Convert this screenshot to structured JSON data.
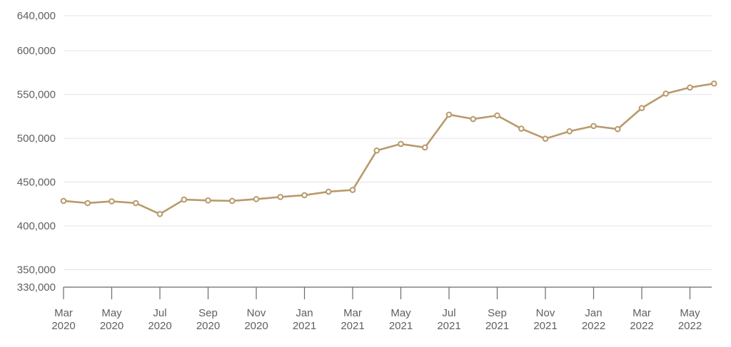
{
  "chart_data": {
    "type": "line",
    "title": "",
    "xlabel": "",
    "ylabel": "",
    "ylim": [
      330000,
      640000
    ],
    "y_ticks": [
      330000,
      350000,
      400000,
      450000,
      500000,
      550000,
      600000,
      640000
    ],
    "y_tick_labels": [
      "330,000",
      "350,000",
      "400,000",
      "450,000",
      "500,000",
      "550,000",
      "600,000",
      "640,000"
    ],
    "x_ticks": [
      {
        "month": "2020-03",
        "line1": "Mar",
        "line2": "2020"
      },
      {
        "month": "2020-05",
        "line1": "May",
        "line2": "2020"
      },
      {
        "month": "2020-07",
        "line1": "Jul",
        "line2": "2020"
      },
      {
        "month": "2020-09",
        "line1": "Sep",
        "line2": "2020"
      },
      {
        "month": "2020-11",
        "line1": "Nov",
        "line2": "2020"
      },
      {
        "month": "2021-01",
        "line1": "Jan",
        "line2": "2021"
      },
      {
        "month": "2021-03",
        "line1": "Mar",
        "line2": "2021"
      },
      {
        "month": "2021-05",
        "line1": "May",
        "line2": "2021"
      },
      {
        "month": "2021-07",
        "line1": "Jul",
        "line2": "2021"
      },
      {
        "month": "2021-09",
        "line1": "Sep",
        "line2": "2021"
      },
      {
        "month": "2021-11",
        "line1": "Nov",
        "line2": "2021"
      },
      {
        "month": "2022-01",
        "line1": "Jan",
        "line2": "2022"
      },
      {
        "month": "2022-03",
        "line1": "Mar",
        "line2": "2022"
      },
      {
        "month": "2022-05",
        "line1": "May",
        "line2": "2022"
      }
    ],
    "x": [
      "2020-03",
      "2020-04",
      "2020-05",
      "2020-06",
      "2020-07",
      "2020-08",
      "2020-09",
      "2020-10",
      "2020-11",
      "2020-12",
      "2021-01",
      "2021-02",
      "2021-03",
      "2021-04",
      "2021-05",
      "2021-06",
      "2021-07",
      "2021-08",
      "2021-09",
      "2021-10",
      "2021-11",
      "2021-12",
      "2022-01",
      "2022-02",
      "2022-03",
      "2022-04",
      "2022-05",
      "2022-06"
    ],
    "series": [
      {
        "values": [
          428500,
          426000,
          428000,
          426000,
          413500,
          430000,
          429000,
          428500,
          430500,
          433000,
          435000,
          439000,
          441000,
          486000,
          493500,
          489500,
          527000,
          522000,
          526000,
          511000,
          499500,
          508000,
          514000,
          510500,
          534500,
          551000,
          558000,
          562500
        ],
        "color": "#b89a6c"
      }
    ],
    "grid": true,
    "legend": "none"
  }
}
